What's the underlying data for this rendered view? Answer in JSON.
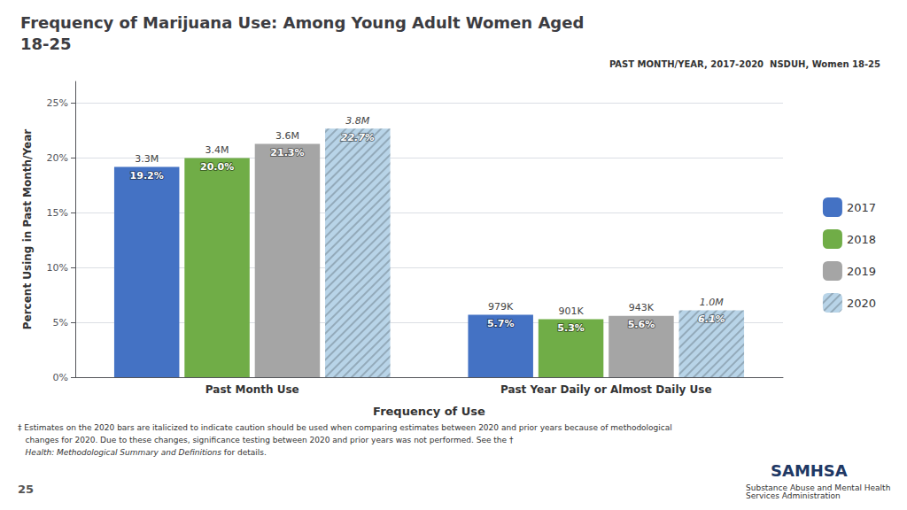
{
  "chart_data": {
    "type": "bar",
    "title": "Frequency of Marijuana Use: Among Young Adult Women Aged\n18-25",
    "subtitle": "PAST MONTH/YEAR, 2017-2020  NSDUH, Women 18-25",
    "xlabel": "Frequency of Use",
    "ylabel": "Percent Using in Past Month/Year",
    "categories": [
      "Past Month Use",
      "Past Year Daily or Almost Daily Use"
    ],
    "series": [
      {
        "name": "2017",
        "color": "#4472c4",
        "values": [
          19.2,
          5.7
        ],
        "value_labels": [
          "19.2%",
          "5.7%"
        ],
        "annotations": [
          "3.3M",
          "979K"
        ]
      },
      {
        "name": "2018",
        "color": "#70ad47",
        "values": [
          20.0,
          5.3
        ],
        "value_labels": [
          "20.0%",
          "5.3%"
        ],
        "annotations": [
          "3.4M",
          "901K"
        ]
      },
      {
        "name": "2019",
        "color": "#a5a5a5",
        "values": [
          21.3,
          5.6
        ],
        "value_labels": [
          "21.3%",
          "5.6%"
        ],
        "annotations": [
          "3.6M",
          "943K"
        ]
      },
      {
        "name": "2020",
        "color": "#b8d4e8",
        "values": [
          22.7,
          6.1
        ],
        "value_labels": [
          "⁡22.7%",
          "⁡6.1%"
        ],
        "annotations": [
          "⁡3.8M",
          "⁡1.0M"
        ]
      }
    ],
    "ylim": [
      0,
      27
    ],
    "yticks": [
      {
        "value": 0,
        "label": "0%"
      },
      {
        "value": 5,
        "label": "5%"
      },
      {
        "value": 10,
        "label": "10%"
      },
      {
        "value": 15,
        "label": "15%"
      },
      {
        "value": 20,
        "label": "20%"
      },
      {
        "value": 25,
        "label": "25%"
      }
    ],
    "grid": true,
    "legend": "right",
    "data_labels": true,
    "annotations": [
      "‡ Estimates on the 2020 bars are italicized to indicate caution should be used when comparing estimates between 2020 and prior years because of methodological",
      "   changes for 2020. Due to these changes, significance testing between 2020 and prior years was not performed. See the †",
      "   Health: Methodological Summary and Definitions",
      " for details.",
      "25",
      "SAMHSA",
      "Substance Abuse and Mental Health\nServices Administration"
    ]
  }
}
